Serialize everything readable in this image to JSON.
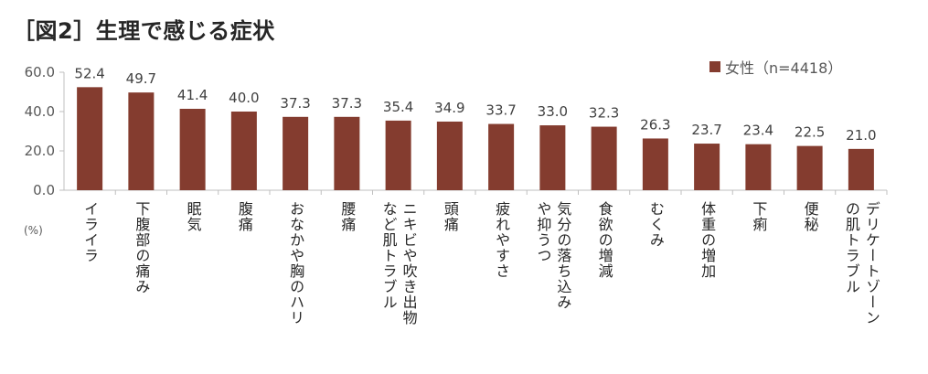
{
  "header": {
    "title": "［図2］生理で感じる症状"
  },
  "unit_label": "(%)",
  "chart_data": {
    "type": "bar",
    "ylim": [
      0,
      60
    ],
    "yticks": [
      "0.0",
      "20.0",
      "40.0",
      "60.0"
    ],
    "grid": false,
    "legend_position": "top-right",
    "categories": [
      "イライラ",
      "下腹部の痛み",
      "眠気",
      "腹痛",
      "おなかや胸のハリ",
      "腰痛",
      "ニキビや吹き出物など肌トラブル",
      "頭痛",
      "疲れやすさ",
      "気分の落ち込みや抑うつ",
      "食欲の増減",
      "むくみ",
      "体重の増加",
      "下痢",
      "便秘",
      "デリケートゾーンの肌トラブル"
    ],
    "category_lines": [
      [
        "イライラ"
      ],
      [
        "下腹部の痛み"
      ],
      [
        "眠気"
      ],
      [
        "腹痛"
      ],
      [
        "おなかや胸のハリ"
      ],
      [
        "腰痛"
      ],
      [
        "ニキビや吹き出物",
        "など肌トラブル"
      ],
      [
        "頭痛"
      ],
      [
        "疲れやすさ"
      ],
      [
        "気分の落ち込み",
        "や抑うつ"
      ],
      [
        "食欲の増減"
      ],
      [
        "むくみ"
      ],
      [
        "体重の増加"
      ],
      [
        "下痢"
      ],
      [
        "便秘"
      ],
      [
        "デリケートゾーン",
        "の肌トラブル"
      ]
    ],
    "series": [
      {
        "name": "女性（n=4418）",
        "color": "#843c2f",
        "values": [
          52.4,
          49.7,
          41.4,
          40.0,
          37.3,
          37.3,
          35.4,
          34.9,
          33.7,
          33.0,
          32.3,
          26.3,
          23.7,
          23.4,
          22.5,
          21.0
        ],
        "labels": [
          "52.4",
          "49.7",
          "41.4",
          "40.0",
          "37.3",
          "37.3",
          "35.4",
          "34.9",
          "33.7",
          "33.0",
          "32.3",
          "26.3",
          "23.7",
          "23.4",
          "22.5",
          "21.0"
        ]
      }
    ]
  }
}
